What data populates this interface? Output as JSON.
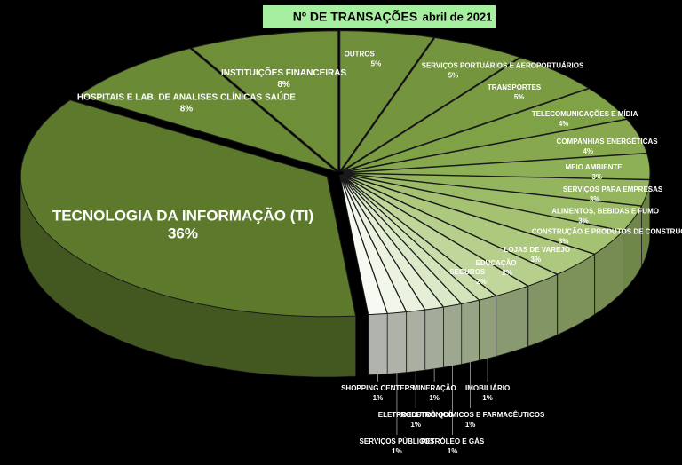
{
  "chart_data": {
    "type": "pie",
    "title": "Nº DE TRANSAÇÕES",
    "subtitle": "abril de 2021",
    "categories": [
      "OUTROS",
      "SERVIÇOS PORTUÁRIOS E AEROPORTUÁRIOS",
      "TRANSPORTES",
      "TELECOMUNICAÇÕES E MÍDIA",
      "COMPANHIAS ENERGÉTICAS",
      "MEIO AMBIENTE",
      "SERVIÇOS PARA EMPRESAS",
      "ALIMENTOS, BEBIDAS E FUMO",
      "CONSTRUÇÃO E PRODUTOS DE CONSTRUÇÃO",
      "LOJAS DE VAREJO",
      "EDUCAÇÃO",
      "SEGUROS",
      "IMOBILIÁRIO",
      "PRODUTOS QUÍMICOS E FARMACÊUTICOS",
      "PETRÓLEO E GÁS",
      "MINERAÇÃO",
      "ELETROELETRÔNICO",
      "SERVIÇOS PÚBLICOS",
      "SHOPPING CENTERS",
      "TECNOLOGIA DA INFORMAÇÃO (TI)",
      "HOSPITAIS E LAB. DE ANALISES CLÍNICAS SAÚDE",
      "INSTITUIÇÕES FINANCEIRAS"
    ],
    "values": [
      5,
      5,
      5,
      4,
      4,
      3,
      3,
      3,
      3,
      3,
      2,
      2,
      1,
      1,
      1,
      1,
      1,
      1,
      1,
      36,
      8,
      8
    ],
    "value_labels": [
      "5%",
      "5%",
      "5%",
      "4%",
      "4%",
      "3%",
      "3%",
      "3%",
      "3%",
      "3%",
      "2%",
      "2%",
      "1%",
      "1%",
      "1%",
      "1%",
      "1%",
      "1%",
      "1%",
      "36%",
      "8%",
      "8%"
    ],
    "colors": [
      "#6f8f3a",
      "#74953d",
      "#7a9b42",
      "#80a247",
      "#87a84e",
      "#8daf55",
      "#94b55d",
      "#9cbb67",
      "#a4c272",
      "#adc97e",
      "#b6cf8c",
      "#c0d69b",
      "#cadeab",
      "#d3e4ba",
      "#dce9c8",
      "#e4efd5",
      "#ebf3e0",
      "#f1f7ea",
      "#f6faf2",
      "#5d7a2c",
      "#6a8a36",
      "#6e8e38"
    ]
  }
}
